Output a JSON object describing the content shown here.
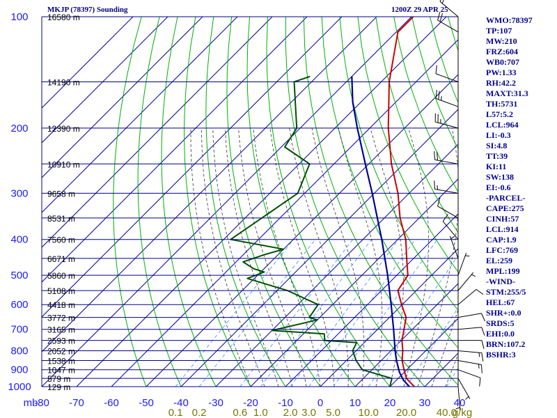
{
  "header": {
    "title": "MKJP (78397) Sounding",
    "time": "1200Z 29 APR 25"
  },
  "indices": [
    "WMO:78397",
    "TP:107",
    "MW:210",
    "FRZ:604",
    "WB0:707",
    "PW:1.33",
    "RH:42.2",
    "MAXT:31.3",
    "TH:5731",
    "L57:5.2",
    "LCL:964",
    "LI:-0.3",
    "SI:4.8",
    "TT:39",
    "KI:11",
    "SW:138",
    "EI:-0.6",
    "-PARCEL-",
    "CAPE:275",
    "CINH:57",
    "LCL:914",
    "CAP:1.9",
    "LFC:769",
    "EL:259",
    "MPL:199",
    "-WIND-",
    "STM:255/5",
    "HEL:67",
    "SHR+:0.0",
    "SRDS:5",
    "EHI:0.0",
    "BRN:107.2",
    "BSHR:3"
  ],
  "colors": {
    "isobar": "#00008b",
    "isotherm": "#0000a0",
    "dry_adiabat": "#00b000",
    "moist_adiabat": "#333333",
    "mixing_ratio": "#5aa0ff",
    "temperature": "#cc0000",
    "dewpoint": "#005000",
    "parcel": "#000099",
    "axis_label": "#1a1aff",
    "mixing_label": "#777700",
    "height_label": "#000000"
  },
  "chart_data": {
    "type": "skew-t",
    "x_axis_unit": "mb",
    "pressure_ticks": [
      {
        "p": 100,
        "label": "100"
      },
      {
        "p": 200,
        "label": "200"
      },
      {
        "p": 300,
        "label": "300"
      },
      {
        "p": 400,
        "label": "400"
      },
      {
        "p": 500,
        "label": "500"
      },
      {
        "p": 600,
        "label": "600"
      },
      {
        "p": 700,
        "label": "700"
      },
      {
        "p": 800,
        "label": "800"
      },
      {
        "p": 900,
        "label": "900"
      },
      {
        "p": 1000,
        "label": "1000"
      }
    ],
    "temperature_ticks": [
      -80,
      -70,
      -60,
      -50,
      -40,
      -30,
      -20,
      -10,
      0,
      10,
      20,
      30,
      40
    ],
    "temperature_tick_labels": [
      "-80",
      "-70",
      "-60",
      "-50",
      "-40",
      "-30",
      "-20",
      "-10",
      "0",
      "10",
      "20",
      "30",
      "40"
    ],
    "mixing_ratio_labels": [
      "0.1",
      "0.2",
      "0.6",
      "1.0",
      "2.0",
      "3.0",
      "5.0",
      "10.0",
      "20.0",
      "40.0",
      "g/kg"
    ],
    "height_levels": [
      {
        "p": 100,
        "label": "16580 m"
      },
      {
        "p": 150,
        "label": "14190 m"
      },
      {
        "p": 200,
        "label": "12390 m"
      },
      {
        "p": 250,
        "label": "10910 m"
      },
      {
        "p": 300,
        "label": "9658 m"
      },
      {
        "p": 350,
        "label": "8531 m"
      },
      {
        "p": 400,
        "label": "7560 m"
      },
      {
        "p": 450,
        "label": "6671 m"
      },
      {
        "p": 500,
        "label": "5860 m"
      },
      {
        "p": 550,
        "label": "5108 m"
      },
      {
        "p": 600,
        "label": "4418 m"
      },
      {
        "p": 650,
        "label": "3772 m"
      },
      {
        "p": 700,
        "label": "3165 m"
      },
      {
        "p": 750,
        "label": "2593 m"
      },
      {
        "p": 800,
        "label": "2052 m"
      },
      {
        "p": 850,
        "label": "1538 m"
      },
      {
        "p": 900,
        "label": "1047 m"
      },
      {
        "p": 950,
        "label": "579 m"
      },
      {
        "p": 1000,
        "label": "129 m"
      }
    ],
    "series": [
      {
        "key": "temperature",
        "values": [
          [
            1007,
            28.2
          ],
          [
            1000,
            27.0
          ],
          [
            950,
            22.4
          ],
          [
            900,
            19.2
          ],
          [
            850,
            16.0
          ],
          [
            800,
            13.4
          ],
          [
            750,
            10.2
          ],
          [
            700,
            7.6
          ],
          [
            650,
            4.8
          ],
          [
            600,
            -0.2
          ],
          [
            550,
            -5.3
          ],
          [
            500,
            -6.8
          ],
          [
            450,
            -12.0
          ],
          [
            400,
            -17.7
          ],
          [
            350,
            -25.5
          ],
          [
            300,
            -33.2
          ],
          [
            250,
            -43.5
          ],
          [
            200,
            -54.7
          ],
          [
            150,
            -67.7
          ],
          [
            110,
            -79.5
          ],
          [
            100,
            -79.5
          ]
        ]
      },
      {
        "key": "dewpoint",
        "values": [
          [
            1007,
            21.6
          ],
          [
            1000,
            20.0
          ],
          [
            950,
            18.2
          ],
          [
            900,
            7.2
          ],
          [
            850,
            2.8
          ],
          [
            800,
            -1.0
          ],
          [
            760,
            -2.2
          ],
          [
            750,
            -12.0
          ],
          [
            720,
            -14.0
          ],
          [
            705,
            -30.0
          ],
          [
            660,
            -20.0
          ],
          [
            650,
            -23.0
          ],
          [
            600,
            -24.2
          ],
          [
            550,
            -37.0
          ],
          [
            510,
            -52.0
          ],
          [
            490,
            -49.0
          ],
          [
            480,
            -53.0
          ],
          [
            460,
            -58.0
          ],
          [
            440,
            -54.0
          ],
          [
            425,
            -50.0
          ],
          [
            400,
            -68.0
          ],
          [
            300,
            -62.0
          ],
          [
            250,
            -67.0
          ],
          [
            225,
            -79.0
          ],
          [
            200,
            -81.0
          ],
          [
            150,
            -95.0
          ],
          [
            145,
            -92.0
          ]
        ]
      },
      {
        "key": "parcel",
        "values": [
          [
            1007,
            26.4
          ],
          [
            1000,
            25.6
          ],
          [
            960,
            22.0
          ],
          [
            914,
            18.6
          ],
          [
            850,
            14.4
          ],
          [
            800,
            11.2
          ],
          [
            700,
            4.6
          ],
          [
            600,
            -3.2
          ],
          [
            500,
            -12.6
          ],
          [
            400,
            -24.6
          ],
          [
            300,
            -40.6
          ],
          [
            250,
            -51.0
          ],
          [
            200,
            -63.6
          ],
          [
            170,
            -72.4
          ],
          [
            145,
            -80.0
          ]
        ]
      }
    ],
    "wind_barbs": [
      {
        "p": 1000,
        "dir": 175,
        "spd": 5
      },
      {
        "p": 950,
        "dir": 150,
        "spd": 5
      },
      {
        "p": 900,
        "dir": 110,
        "spd": 10
      },
      {
        "p": 850,
        "dir": 100,
        "spd": 15
      },
      {
        "p": 800,
        "dir": 95,
        "spd": 15
      },
      {
        "p": 750,
        "dir": 90,
        "spd": 10
      },
      {
        "p": 700,
        "dir": 85,
        "spd": 10
      },
      {
        "p": 650,
        "dir": 80,
        "spd": 10
      },
      {
        "p": 600,
        "dir": 50,
        "spd": 10
      },
      {
        "p": 550,
        "dir": 40,
        "spd": 5
      },
      {
        "p": 500,
        "dir": 20,
        "spd": 5
      },
      {
        "p": 450,
        "dir": 340,
        "spd": 5
      },
      {
        "p": 400,
        "dir": 320,
        "spd": 10
      },
      {
        "p": 350,
        "dir": 300,
        "spd": 10
      },
      {
        "p": 300,
        "dir": 280,
        "spd": 15
      },
      {
        "p": 250,
        "dir": 280,
        "spd": 20
      },
      {
        "p": 200,
        "dir": 285,
        "spd": 25
      },
      {
        "p": 175,
        "dir": 290,
        "spd": 25
      },
      {
        "p": 150,
        "dir": 290,
        "spd": 10
      },
      {
        "p": 110,
        "dir": 300,
        "spd": 20
      },
      {
        "p": 100,
        "dir": 310,
        "spd": 15
      }
    ]
  }
}
